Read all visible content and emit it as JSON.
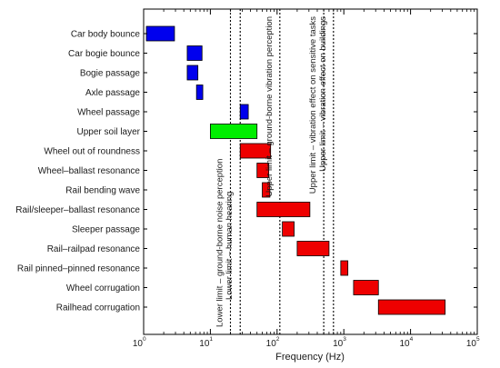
{
  "chart_data": {
    "type": "bar",
    "orientation": "horizontal-range",
    "xlabel": "Frequency (Hz)",
    "x_scale": "log",
    "xlim": [
      1,
      100000
    ],
    "x_ticks": [
      {
        "base": "10",
        "exp": "0",
        "value": 1
      },
      {
        "base": "10",
        "exp": "1",
        "value": 10
      },
      {
        "base": "10",
        "exp": "2",
        "value": 100
      },
      {
        "base": "10",
        "exp": "3",
        "value": 1000
      },
      {
        "base": "10",
        "exp": "4",
        "value": 10000
      },
      {
        "base": "10",
        "exp": "5",
        "value": 100000
      }
    ],
    "grid": false,
    "ranges": [
      {
        "label": "Car body bounce",
        "min": 1.1,
        "max": 2.9,
        "color": "#0000ee"
      },
      {
        "label": "Car bogie bounce",
        "min": 4.5,
        "max": 7.5,
        "color": "#0000ee"
      },
      {
        "label": "Bogie passage",
        "min": 4.5,
        "max": 6.5,
        "color": "#0000ee"
      },
      {
        "label": "Axle passage",
        "min": 6.2,
        "max": 7.7,
        "color": "#0000ee"
      },
      {
        "label": "Wheel passage",
        "min": 28,
        "max": 37,
        "color": "#0000ee"
      },
      {
        "label": "Upper soil layer",
        "min": 10,
        "max": 50,
        "color": "#00ee00"
      },
      {
        "label": "Wheel out of roundness",
        "min": 28,
        "max": 80,
        "color": "#ee0000"
      },
      {
        "label": "Wheel–ballast resonance",
        "min": 50,
        "max": 75,
        "color": "#ee0000"
      },
      {
        "label": "Rail bending wave",
        "min": 60,
        "max": 78,
        "color": "#ee0000"
      },
      {
        "label": "Rail/sleeper–ballast resonance",
        "min": 50,
        "max": 310,
        "color": "#ee0000"
      },
      {
        "label": "Sleeper passage",
        "min": 120,
        "max": 180,
        "color": "#ee0000"
      },
      {
        "label": "Rail–railpad resonance",
        "min": 200,
        "max": 600,
        "color": "#ee0000"
      },
      {
        "label": "Rail pinned–pinned resonance",
        "min": 900,
        "max": 1150,
        "color": "#ee0000"
      },
      {
        "label": "Wheel corrugation",
        "min": 1400,
        "max": 3300,
        "color": "#ee0000"
      },
      {
        "label": "Railhead corrugation",
        "min": 3300,
        "max": 33000,
        "color": "#ee0000"
      }
    ],
    "annotations": [
      {
        "x": 20,
        "text": "Lower limit – ground-borne noise perception",
        "style": "dotted"
      },
      {
        "x": 28,
        "text": "Lower limit – human hearing",
        "style": "dotted"
      },
      {
        "x": 110,
        "text": "Upper limit – ground-borne vibration perception",
        "style": "dotted"
      },
      {
        "x": 500,
        "text": "Upper limit – vibration effect on sensitive tasks",
        "style": "dotted"
      },
      {
        "x": 700,
        "text": "Upper limit – vibration effect on buildings",
        "style": "dotted"
      }
    ]
  }
}
